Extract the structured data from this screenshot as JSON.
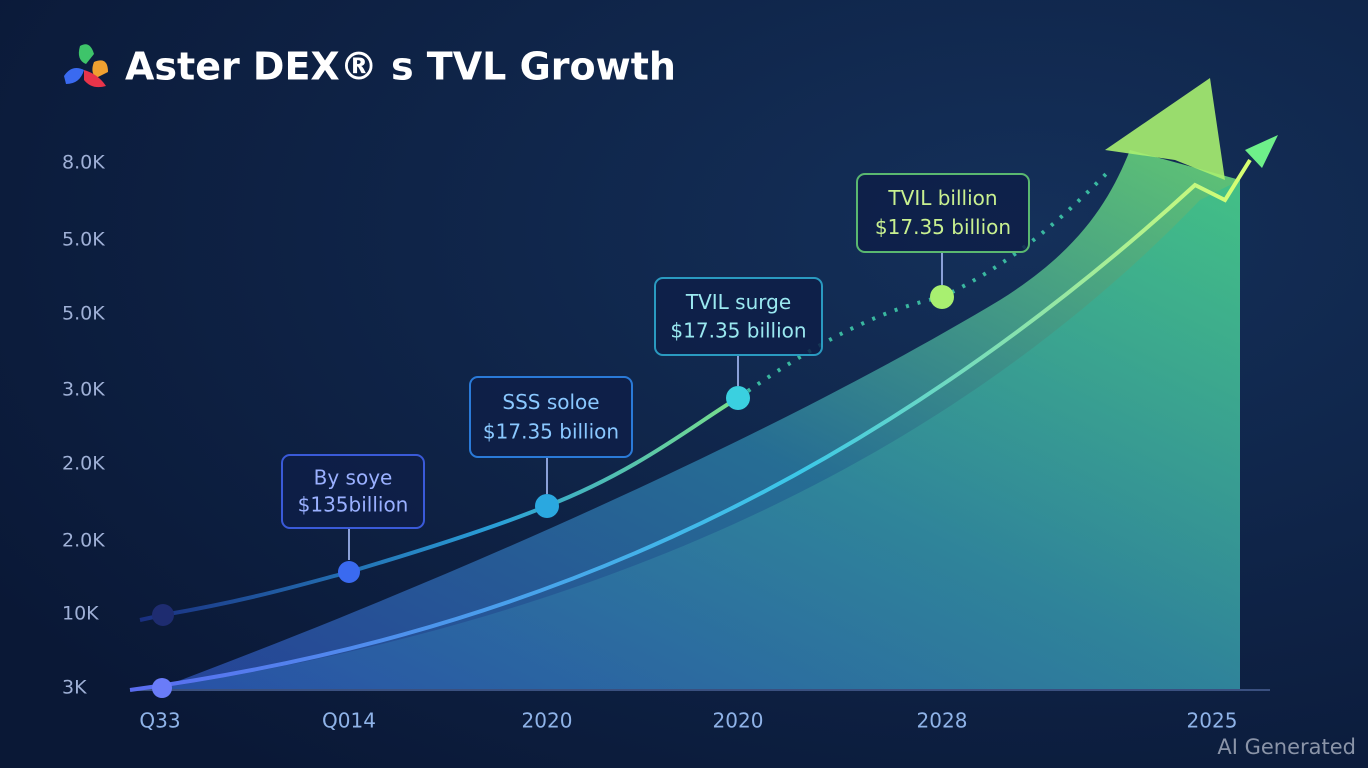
{
  "title": "Aster DEX® s TVL Growth",
  "y_axis_labels": [
    "8.0K",
    "5.0K",
    "5.0K",
    "3.0K",
    "2.0K",
    "2.0K",
    "10K",
    "3K"
  ],
  "x_axis_labels": [
    "Q33",
    "Q014",
    "2020",
    "2020",
    "2028",
    "2025"
  ],
  "callouts": [
    {
      "line1": "By soye",
      "line2": "$135billion"
    },
    {
      "line1": "SSS soloe",
      "line2": "$17.35 billion"
    },
    {
      "line1": "TVIL surge",
      "line2": "$17.35 billion"
    },
    {
      "line1": "TVIL billion",
      "line2": "$17.35 billion"
    }
  ],
  "watermark": "AI Generated"
}
